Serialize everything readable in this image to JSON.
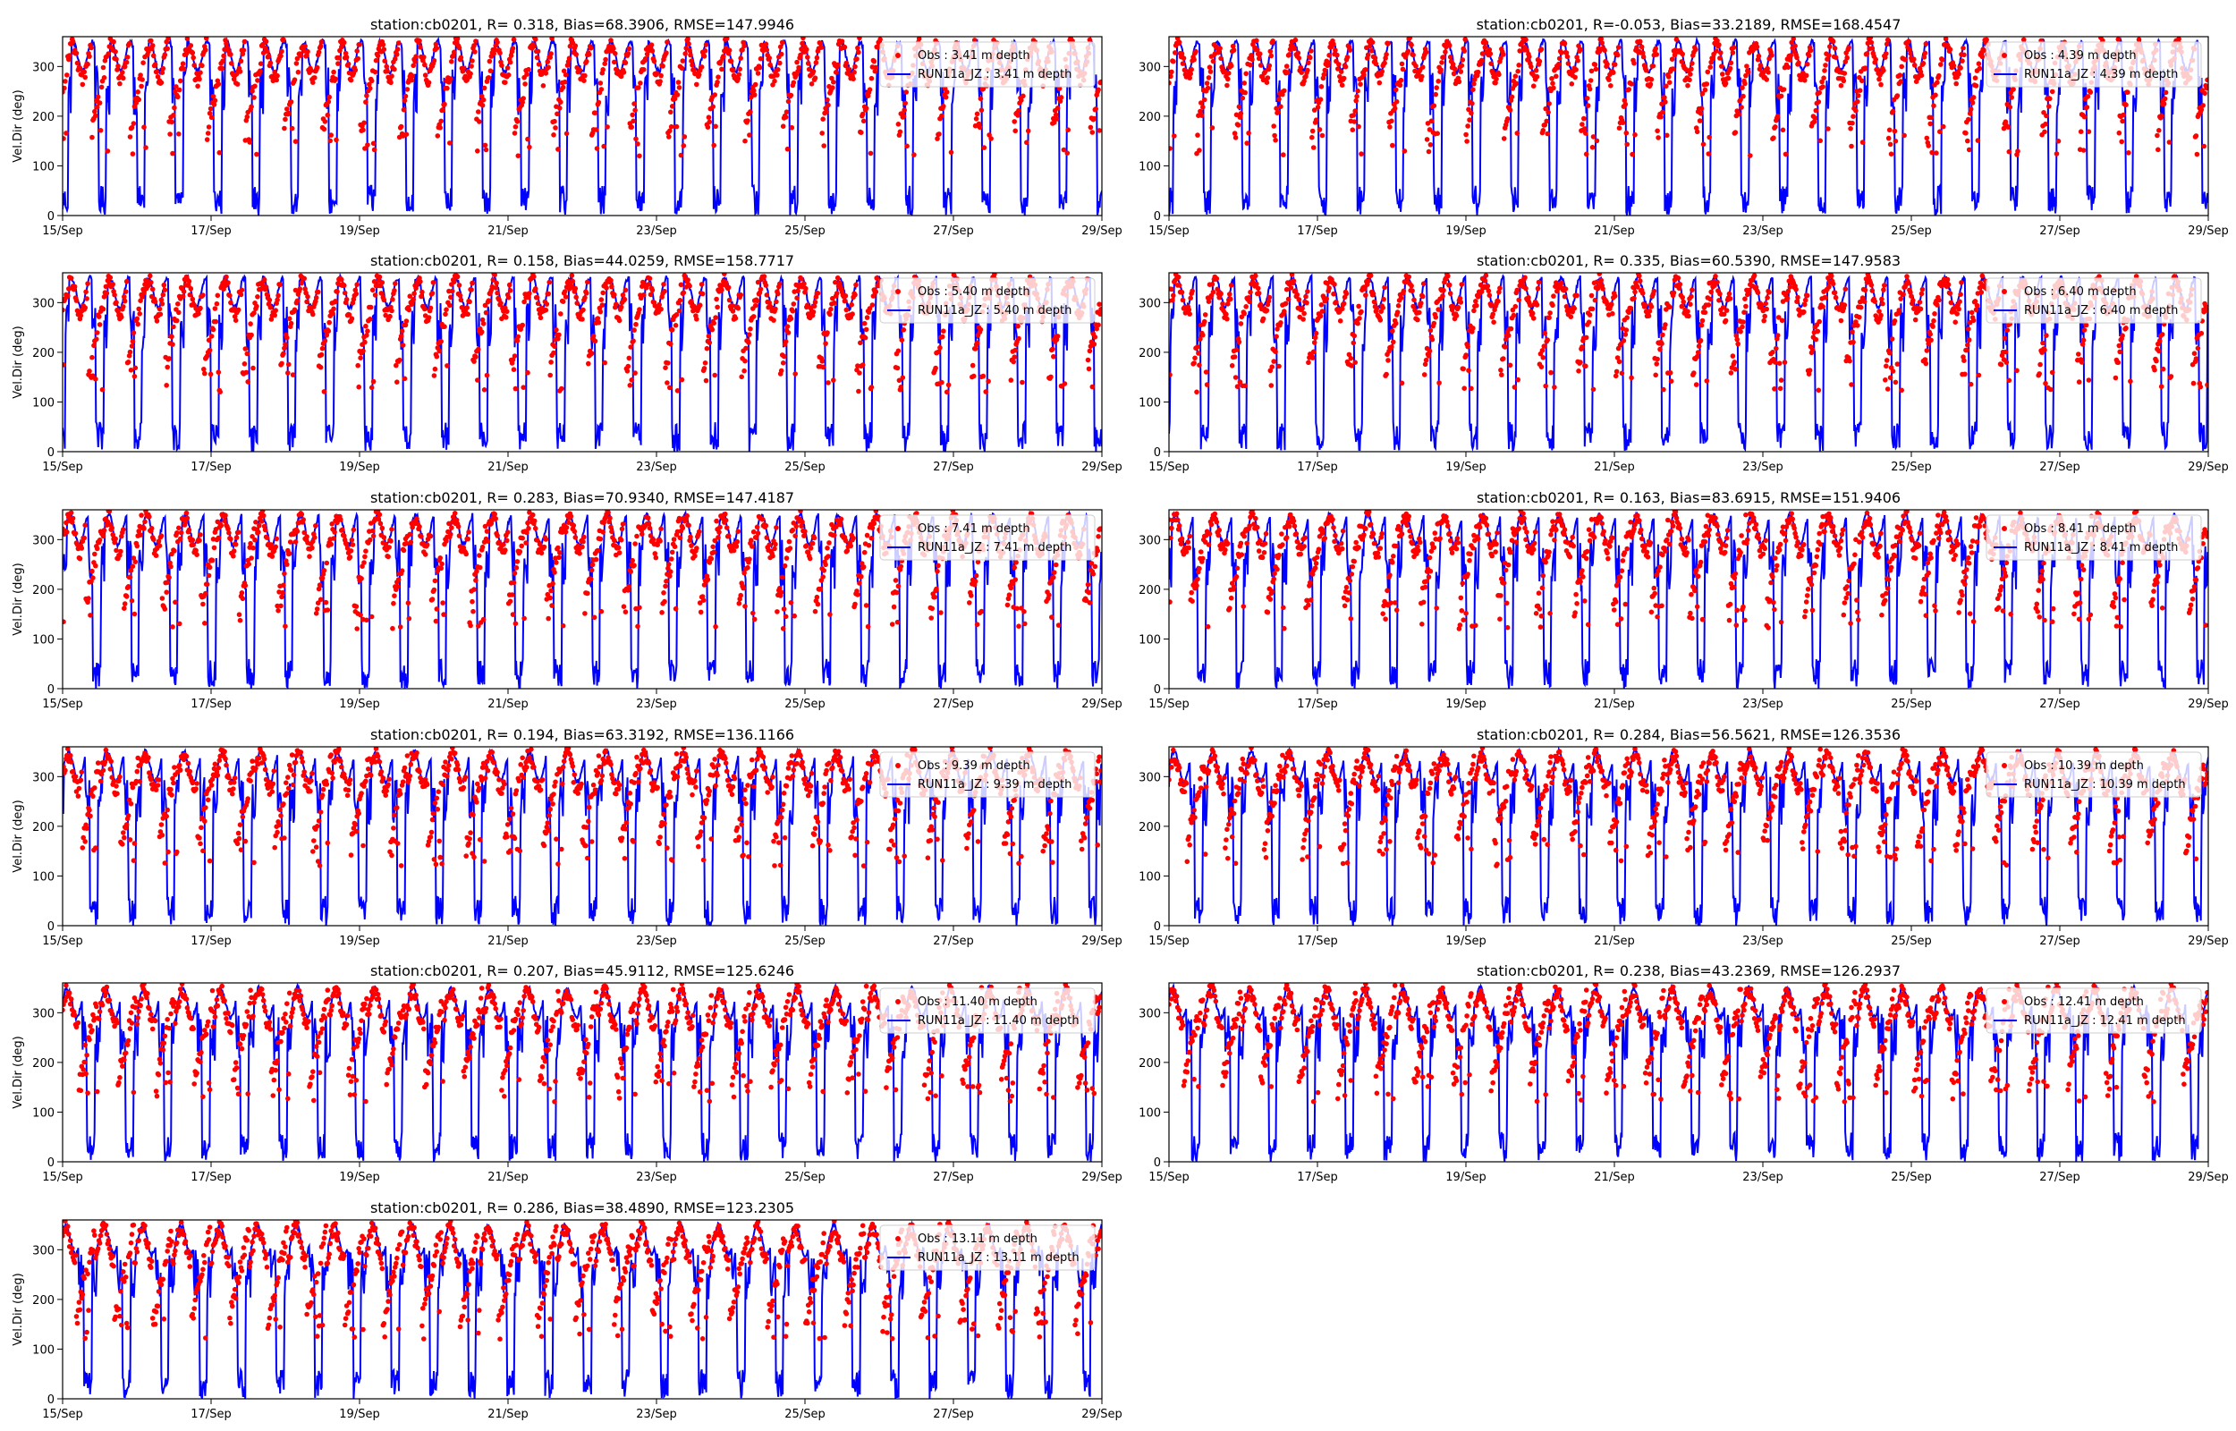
{
  "chart_data": [
    {
      "type": "scatter+line",
      "title": "station:cb0201, R= 0.318, Bias=68.3906, RMSE=147.9946",
      "ylabel": "Vel.Dir (deg)",
      "xlabel": "",
      "x_range": [
        "2016-09-15",
        "2016-09-29"
      ],
      "ylim": [
        0,
        360
      ],
      "yticks": [
        0,
        100,
        200,
        300
      ],
      "xticks": [
        "15/Sep",
        "17/Sep",
        "19/Sep",
        "21/Sep",
        "23/Sep",
        "25/Sep",
        "27/Sep",
        "29/Sep"
      ],
      "legend_position": "upper-right",
      "series": [
        {
          "name": "Obs : 3.41 m depth",
          "style": "red dots",
          "color": "#ff0000"
        },
        {
          "name": "RUN11a_JZ : 3.41 m depth",
          "style": "blue line",
          "color": "#0000ff"
        }
      ]
    },
    {
      "type": "scatter+line",
      "title": "station:cb0201, R=-0.053, Bias=33.2189, RMSE=168.4547",
      "ylabel": "",
      "xlabel": "",
      "x_range": [
        "2016-09-15",
        "2016-09-29"
      ],
      "ylim": [
        0,
        360
      ],
      "yticks": [
        0,
        100,
        200,
        300
      ],
      "xticks": [
        "15/Sep",
        "17/Sep",
        "19/Sep",
        "21/Sep",
        "23/Sep",
        "25/Sep",
        "27/Sep",
        "29/Sep"
      ],
      "legend_position": "upper-right",
      "series": [
        {
          "name": "Obs : 4.39 m depth",
          "style": "red dots",
          "color": "#ff0000"
        },
        {
          "name": "RUN11a_JZ : 4.39 m depth",
          "style": "blue line",
          "color": "#0000ff"
        }
      ]
    },
    {
      "type": "scatter+line",
      "title": "station:cb0201, R= 0.158, Bias=44.0259, RMSE=158.7717",
      "ylabel": "Vel.Dir (deg)",
      "xlabel": "",
      "x_range": [
        "2016-09-15",
        "2016-09-29"
      ],
      "ylim": [
        0,
        360
      ],
      "yticks": [
        0,
        100,
        200,
        300
      ],
      "xticks": [
        "15/Sep",
        "17/Sep",
        "19/Sep",
        "21/Sep",
        "23/Sep",
        "25/Sep",
        "27/Sep",
        "29/Sep"
      ],
      "legend_position": "upper-right",
      "series": [
        {
          "name": "Obs : 5.40 m depth",
          "style": "red dots",
          "color": "#ff0000"
        },
        {
          "name": "RUN11a_JZ : 5.40 m depth",
          "style": "blue line",
          "color": "#0000ff"
        }
      ]
    },
    {
      "type": "scatter+line",
      "title": "station:cb0201, R= 0.335, Bias=60.5390, RMSE=147.9583",
      "ylabel": "",
      "xlabel": "",
      "x_range": [
        "2016-09-15",
        "2016-09-29"
      ],
      "ylim": [
        0,
        360
      ],
      "yticks": [
        0,
        100,
        200,
        300
      ],
      "xticks": [
        "15/Sep",
        "17/Sep",
        "19/Sep",
        "21/Sep",
        "23/Sep",
        "25/Sep",
        "27/Sep",
        "29/Sep"
      ],
      "legend_position": "upper-right",
      "series": [
        {
          "name": "Obs : 6.40 m depth",
          "style": "red dots",
          "color": "#ff0000"
        },
        {
          "name": "RUN11a_JZ : 6.40 m depth",
          "style": "blue line",
          "color": "#0000ff"
        }
      ]
    },
    {
      "type": "scatter+line",
      "title": "station:cb0201, R= 0.283, Bias=70.9340, RMSE=147.4187",
      "ylabel": "Vel.Dir (deg)",
      "xlabel": "",
      "x_range": [
        "2016-09-15",
        "2016-09-29"
      ],
      "ylim": [
        0,
        360
      ],
      "yticks": [
        0,
        100,
        200,
        300
      ],
      "xticks": [
        "15/Sep",
        "17/Sep",
        "19/Sep",
        "21/Sep",
        "23/Sep",
        "25/Sep",
        "27/Sep",
        "29/Sep"
      ],
      "legend_position": "upper-right",
      "series": [
        {
          "name": "Obs : 7.41 m depth",
          "style": "red dots",
          "color": "#ff0000"
        },
        {
          "name": "RUN11a_JZ : 7.41 m depth",
          "style": "blue line",
          "color": "#0000ff"
        }
      ]
    },
    {
      "type": "scatter+line",
      "title": "station:cb0201, R= 0.163, Bias=83.6915, RMSE=151.9406",
      "ylabel": "",
      "xlabel": "",
      "x_range": [
        "2016-09-15",
        "2016-09-29"
      ],
      "ylim": [
        0,
        360
      ],
      "yticks": [
        0,
        100,
        200,
        300
      ],
      "xticks": [
        "15/Sep",
        "17/Sep",
        "19/Sep",
        "21/Sep",
        "23/Sep",
        "25/Sep",
        "27/Sep",
        "29/Sep"
      ],
      "legend_position": "upper-right",
      "series": [
        {
          "name": "Obs : 8.41 m depth",
          "style": "red dots",
          "color": "#ff0000"
        },
        {
          "name": "RUN11a_JZ : 8.41 m depth",
          "style": "blue line",
          "color": "#0000ff"
        }
      ]
    },
    {
      "type": "scatter+line",
      "title": "station:cb0201, R= 0.194, Bias=63.3192, RMSE=136.1166",
      "ylabel": "Vel.Dir (deg)",
      "xlabel": "",
      "x_range": [
        "2016-09-15",
        "2016-09-29"
      ],
      "ylim": [
        0,
        360
      ],
      "yticks": [
        0,
        100,
        200,
        300
      ],
      "xticks": [
        "15/Sep",
        "17/Sep",
        "19/Sep",
        "21/Sep",
        "23/Sep",
        "25/Sep",
        "27/Sep",
        "29/Sep"
      ],
      "legend_position": "upper-right",
      "series": [
        {
          "name": "Obs : 9.39 m depth",
          "style": "red dots",
          "color": "#ff0000"
        },
        {
          "name": "RUN11a_JZ : 9.39 m depth",
          "style": "blue line",
          "color": "#0000ff"
        }
      ]
    },
    {
      "type": "scatter+line",
      "title": "station:cb0201, R= 0.284, Bias=56.5621, RMSE=126.3536",
      "ylabel": "",
      "xlabel": "",
      "x_range": [
        "2016-09-15",
        "2016-09-29"
      ],
      "ylim": [
        0,
        360
      ],
      "yticks": [
        0,
        100,
        200,
        300
      ],
      "xticks": [
        "15/Sep",
        "17/Sep",
        "19/Sep",
        "21/Sep",
        "23/Sep",
        "25/Sep",
        "27/Sep",
        "29/Sep"
      ],
      "legend_position": "upper-right",
      "series": [
        {
          "name": "Obs : 10.39 m depth",
          "style": "red dots",
          "color": "#ff0000"
        },
        {
          "name": "RUN11a_JZ : 10.39 m depth",
          "style": "blue line",
          "color": "#0000ff"
        }
      ]
    },
    {
      "type": "scatter+line",
      "title": "station:cb0201, R= 0.207, Bias=45.9112, RMSE=125.6246",
      "ylabel": "Vel.Dir (deg)",
      "xlabel": "",
      "x_range": [
        "2016-09-15",
        "2016-09-29"
      ],
      "ylim": [
        0,
        360
      ],
      "yticks": [
        0,
        100,
        200,
        300
      ],
      "xticks": [
        "15/Sep",
        "17/Sep",
        "19/Sep",
        "21/Sep",
        "23/Sep",
        "25/Sep",
        "27/Sep",
        "29/Sep"
      ],
      "legend_position": "upper-right",
      "series": [
        {
          "name": "Obs : 11.40 m depth",
          "style": "red dots",
          "color": "#ff0000"
        },
        {
          "name": "RUN11a_JZ : 11.40 m depth",
          "style": "blue line",
          "color": "#0000ff"
        }
      ]
    },
    {
      "type": "scatter+line",
      "title": "station:cb0201, R= 0.238, Bias=43.2369, RMSE=126.2937",
      "ylabel": "",
      "xlabel": "",
      "x_range": [
        "2016-09-15",
        "2016-09-29"
      ],
      "ylim": [
        0,
        360
      ],
      "yticks": [
        0,
        100,
        200,
        300
      ],
      "xticks": [
        "15/Sep",
        "17/Sep",
        "19/Sep",
        "21/Sep",
        "23/Sep",
        "25/Sep",
        "27/Sep",
        "29/Sep"
      ],
      "legend_position": "upper-right",
      "series": [
        {
          "name": "Obs : 12.41 m depth",
          "style": "red dots",
          "color": "#ff0000"
        },
        {
          "name": "RUN11a_JZ : 12.41 m depth",
          "style": "blue line",
          "color": "#0000ff"
        }
      ]
    },
    {
      "type": "scatter+line",
      "title": "station:cb0201, R= 0.286, Bias=38.4890, RMSE=123.2305",
      "ylabel": "Vel.Dir (deg)",
      "xlabel": "",
      "x_range": [
        "2016-09-15",
        "2016-09-29"
      ],
      "ylim": [
        0,
        360
      ],
      "yticks": [
        0,
        100,
        200,
        300
      ],
      "xticks": [
        "15/Sep",
        "17/Sep",
        "19/Sep",
        "21/Sep",
        "23/Sep",
        "25/Sep",
        "27/Sep",
        "29/Sep"
      ],
      "legend_position": "upper-right",
      "series": [
        {
          "name": "Obs : 13.11 m depth",
          "style": "red dots",
          "color": "#ff0000"
        },
        {
          "name": "RUN11a_JZ : 13.11 m depth",
          "style": "blue line",
          "color": "#0000ff"
        }
      ]
    }
  ]
}
